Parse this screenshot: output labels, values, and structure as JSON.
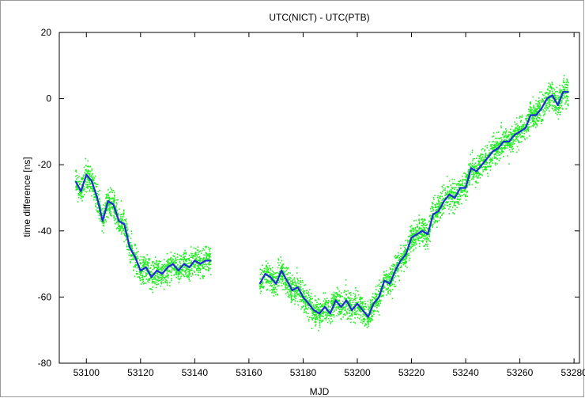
{
  "chart_data": {
    "type": "scatter",
    "title": "UTC(NICT) - UTC(PTB)",
    "xlabel": "MJD",
    "ylabel": "time difference [ns]",
    "xlim": [
      53090,
      53282
    ],
    "ylim": [
      -80,
      20
    ],
    "x_ticks": [
      53100,
      53120,
      53140,
      53160,
      53180,
      53200,
      53220,
      53240,
      53260,
      53280
    ],
    "y_ticks": [
      -80,
      -60,
      -40,
      -20,
      0,
      20
    ],
    "grid": false,
    "legend": "none",
    "series": [
      {
        "style": "scatter",
        "color": "#22ee22",
        "segments": [
          {
            "x": [
              53096,
              53098,
              53100,
              53102,
              53104,
              53106,
              53108,
              53110,
              53112,
              53114,
              53116,
              53118,
              53120,
              53122,
              53124,
              53126,
              53128,
              53130,
              53132,
              53134,
              53136,
              53138,
              53140,
              53142,
              53144,
              53146
            ],
            "y": [
              -25,
              -28,
              -23,
              -25,
              -30,
              -37,
              -31,
              -32,
              -37,
              -38,
              -45,
              -48,
              -52,
              -51,
              -54,
              -52,
              -53,
              -51,
              -50,
              -52,
              -50,
              -51,
              -49,
              -50,
              -49,
              -49
            ]
          },
          {
            "x": [
              53164,
              53166,
              53168,
              53170,
              53172,
              53174,
              53176,
              53178,
              53180,
              53182,
              53184,
              53186,
              53188,
              53190,
              53192,
              53194,
              53196,
              53198,
              53200,
              53202,
              53204,
              53206,
              53208,
              53210,
              53212,
              53214,
              53216,
              53218,
              53220,
              53222,
              53224,
              53226,
              53228,
              53230,
              53232,
              53234,
              53236,
              53238,
              53240,
              53242,
              53244,
              53246,
              53248,
              53250,
              53252,
              53254,
              53256,
              53258,
              53260,
              53262,
              53264,
              53266,
              53268,
              53270,
              53272,
              53274,
              53276,
              53278
            ],
            "y": [
              -56,
              -53,
              -54,
              -56,
              -52,
              -55,
              -58,
              -57,
              -60,
              -62,
              -64,
              -65,
              -63,
              -65,
              -61,
              -63,
              -61,
              -64,
              -62,
              -64,
              -66,
              -62,
              -60,
              -55,
              -56,
              -52,
              -49,
              -47,
              -42,
              -41,
              -40,
              -41,
              -35,
              -34,
              -31,
              -29,
              -30,
              -27,
              -27,
              -21,
              -22,
              -20,
              -18,
              -16,
              -15,
              -13,
              -13,
              -11,
              -10,
              -9,
              -5,
              -5,
              -3,
              0,
              1,
              -2,
              2,
              2
            ]
          }
        ]
      },
      {
        "style": "line",
        "color": "#1f2bd6",
        "segments": [
          {
            "x": [
              53096,
              53098,
              53100,
              53102,
              53104,
              53106,
              53108,
              53110,
              53112,
              53114,
              53116,
              53118,
              53120,
              53122,
              53124,
              53126,
              53128,
              53130,
              53132,
              53134,
              53136,
              53138,
              53140,
              53142,
              53144,
              53146
            ],
            "y": [
              -25,
              -28,
              -23,
              -25,
              -30,
              -37,
              -31,
              -32,
              -37,
              -38,
              -45,
              -48,
              -52,
              -51,
              -54,
              -52,
              -53,
              -51,
              -50,
              -52,
              -50,
              -51,
              -49,
              -50,
              -49,
              -49
            ]
          },
          {
            "x": [
              53164,
              53166,
              53168,
              53170,
              53172,
              53174,
              53176,
              53178,
              53180,
              53182,
              53184,
              53186,
              53188,
              53190,
              53192,
              53194,
              53196,
              53198,
              53200,
              53202,
              53204,
              53206,
              53208,
              53210,
              53212,
              53214,
              53216,
              53218,
              53220,
              53222,
              53224,
              53226,
              53228,
              53230,
              53232,
              53234,
              53236,
              53238,
              53240,
              53242,
              53244,
              53246,
              53248,
              53250,
              53252,
              53254,
              53256,
              53258,
              53260,
              53262,
              53264,
              53266,
              53268,
              53270,
              53272,
              53274,
              53276,
              53278
            ],
            "y": [
              -56,
              -53,
              -54,
              -56,
              -52,
              -55,
              -58,
              -57,
              -60,
              -62,
              -64,
              -65,
              -63,
              -65,
              -61,
              -63,
              -61,
              -64,
              -62,
              -64,
              -66,
              -62,
              -60,
              -55,
              -56,
              -52,
              -49,
              -47,
              -42,
              -41,
              -40,
              -41,
              -35,
              -34,
              -31,
              -29,
              -30,
              -27,
              -27,
              -21,
              -22,
              -20,
              -18,
              -16,
              -15,
              -13,
              -13,
              -11,
              -10,
              -9,
              -5,
              -5,
              -3,
              0,
              1,
              -2,
              2,
              2
            ]
          }
        ]
      }
    ]
  }
}
